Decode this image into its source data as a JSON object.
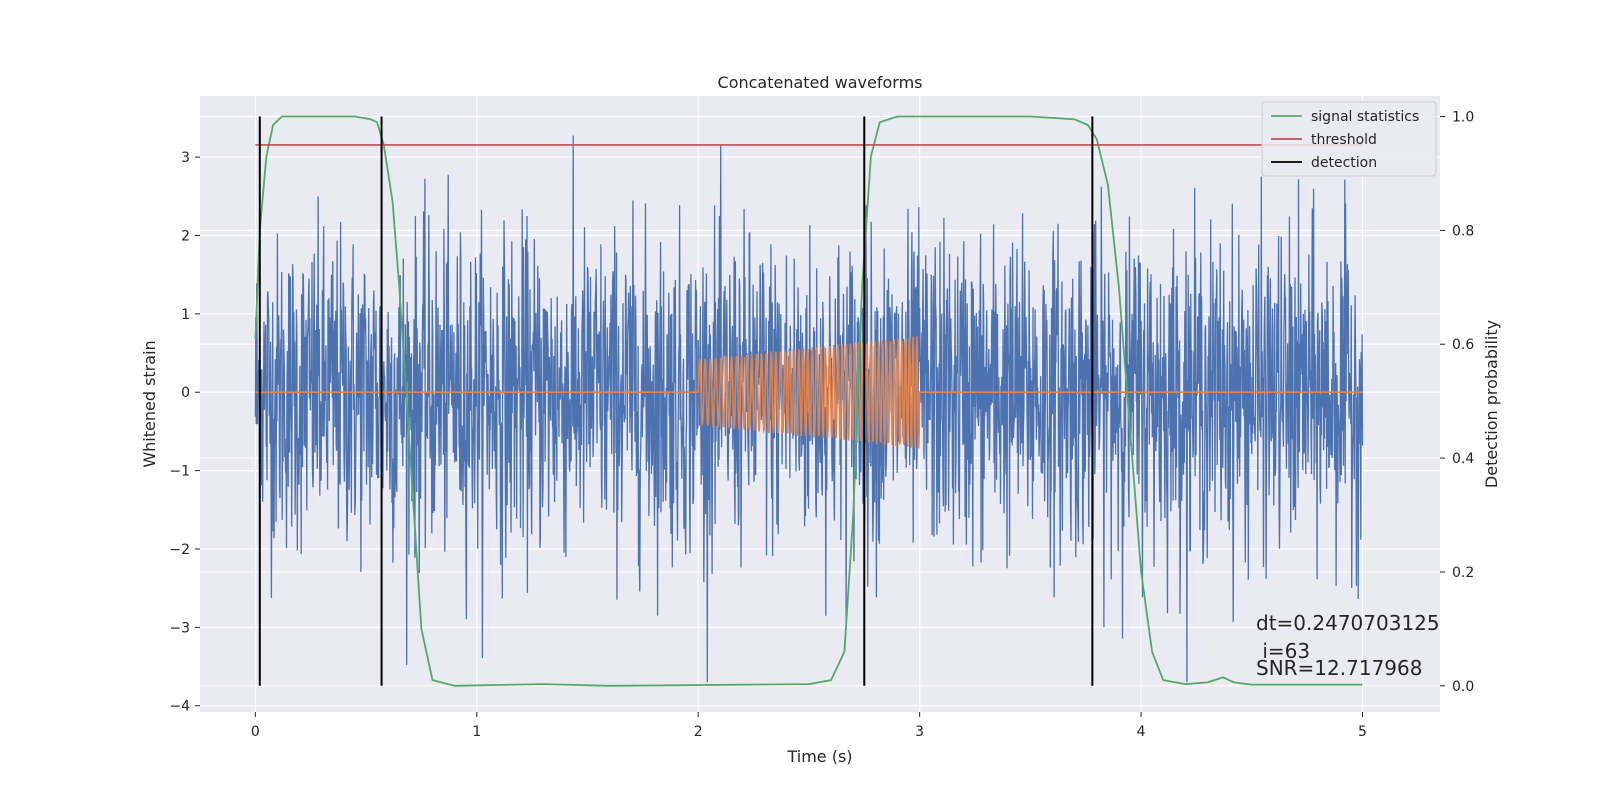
{
  "chart_data": {
    "type": "line",
    "title": "Concatenated waveforms",
    "xlabel": "Time (s)",
    "ylabel": "Whitened strain",
    "y2label": "Detection probability",
    "xlim": [
      -0.25,
      5.35
    ],
    "ylim": [
      -4.08,
      3.78
    ],
    "y2lim": [
      -0.046,
      1.036
    ],
    "x_ticks": [
      0,
      1,
      2,
      3,
      4,
      5
    ],
    "y_ticks": [
      -4,
      -3,
      -2,
      -1,
      0,
      1,
      2,
      3
    ],
    "y2_ticks": [
      0.0,
      0.2,
      0.4,
      0.6,
      0.8,
      1.0
    ],
    "grid": true,
    "legend_position": "top-right",
    "series": [
      {
        "name": "",
        "axis": "left",
        "kind": "noise",
        "color": "#4c72b0",
        "x_range": [
          0,
          5
        ],
        "sample_rate": 512,
        "amplitude_std": 1.0,
        "y_extent": [
          -3.7,
          3.4
        ]
      },
      {
        "name": "",
        "axis": "left",
        "kind": "chirp",
        "color": "#dd8452",
        "x_range": [
          0,
          5
        ],
        "active_range": [
          2,
          3
        ],
        "amplitude_start": 0.42,
        "amplitude_end": 0.72,
        "freq_start": 40,
        "freq_end": 60
      },
      {
        "name": "signal statistics",
        "axis": "right",
        "color": "#55a868",
        "x": [
          0,
          0.02,
          0.05,
          0.08,
          0.12,
          0.2,
          0.45,
          0.52,
          0.55,
          0.58,
          0.62,
          0.65,
          0.7,
          0.75,
          0.8,
          0.9,
          1.3,
          1.6,
          2.2,
          2.5,
          2.6,
          2.66,
          2.7,
          2.74,
          2.78,
          2.82,
          2.9,
          3.5,
          3.7,
          3.76,
          3.8,
          3.85,
          3.9,
          3.95,
          4.0,
          4.05,
          4.1,
          4.2,
          4.3,
          4.37,
          4.42,
          4.5,
          5.0
        ],
        "y": [
          0.61,
          0.8,
          0.93,
          0.985,
          1.0,
          1.0,
          1.0,
          0.995,
          0.99,
          0.95,
          0.85,
          0.7,
          0.4,
          0.1,
          0.01,
          0.0,
          0.003,
          0.0,
          0.002,
          0.003,
          0.01,
          0.06,
          0.3,
          0.7,
          0.93,
          0.99,
          1.0,
          1.0,
          0.995,
          0.985,
          0.96,
          0.88,
          0.7,
          0.45,
          0.2,
          0.06,
          0.01,
          0.003,
          0.006,
          0.015,
          0.006,
          0.002,
          0.002
        ]
      },
      {
        "name": "threshold",
        "axis": "right",
        "color": "#c44e52",
        "x": [
          0,
          5
        ],
        "y": [
          0.95,
          0.95
        ]
      },
      {
        "name": "detection",
        "axis": "right",
        "color": "#000000",
        "kind": "vlines",
        "x": [
          0.02,
          0.57,
          2.75,
          3.78
        ],
        "y_range": [
          0.0,
          1.0
        ]
      }
    ],
    "annotations": [
      "dt=0.2470703125",
      " i=63",
      "SNR=12.717968"
    ]
  }
}
